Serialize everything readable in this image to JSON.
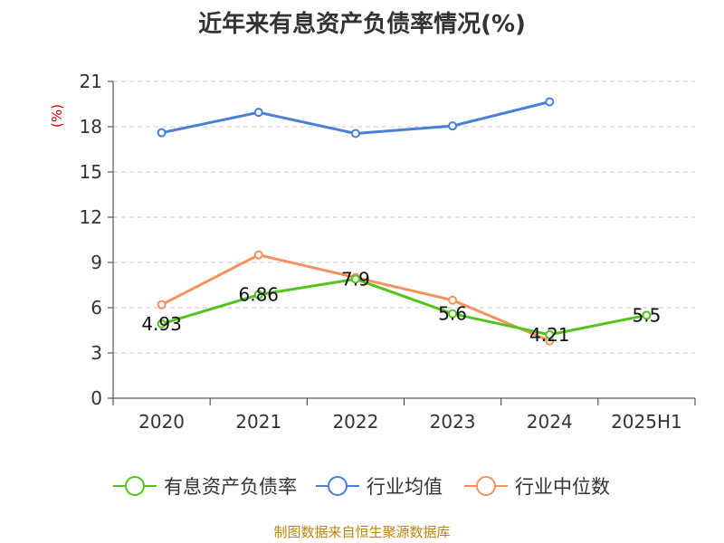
{
  "chart_data": {
    "type": "line",
    "title": "近年来有息资产负债率情况(%)",
    "ylabel": "(%)",
    "xlabel": "",
    "categories": [
      "2020",
      "2021",
      "2022",
      "2023",
      "2024",
      "2025H1"
    ],
    "ylim": [
      0,
      21
    ],
    "yticks": [
      0,
      3,
      6,
      9,
      12,
      15,
      18,
      21
    ],
    "grid": true,
    "legend_position": "bottom",
    "series": [
      {
        "name": "有息资产负债率",
        "color": "#52c41a",
        "values": [
          4.93,
          6.86,
          7.9,
          5.6,
          4.21,
          5.5
        ],
        "labels": [
          "4.93",
          "6.86",
          "7.9",
          "5.6",
          "4.21",
          "5.5"
        ]
      },
      {
        "name": "行业均值",
        "color": "#4a7fd6",
        "values": [
          17.6,
          18.95,
          17.55,
          18.05,
          19.65,
          null
        ]
      },
      {
        "name": "行业中位数",
        "color": "#f4915e",
        "values": [
          6.2,
          9.5,
          8.0,
          6.5,
          3.8,
          null
        ]
      }
    ]
  },
  "source": "制图数据来自恒生聚源数据库"
}
